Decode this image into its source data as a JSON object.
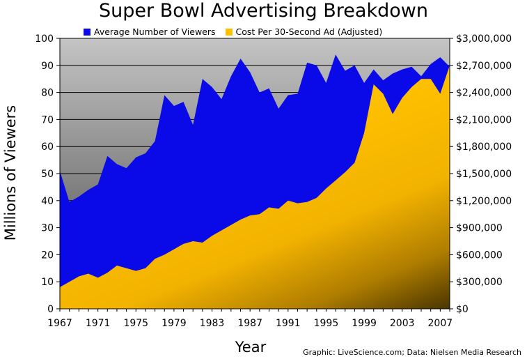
{
  "chart_data": {
    "type": "area",
    "title": "Super Bowl Advertising Breakdown",
    "xlabel": "Year",
    "ylabel": "Millions of Viewers",
    "credit": "Graphic: LiveScience.com; Data: Nielsen Media Research",
    "legend_placement": "top",
    "grid": true,
    "x": [
      1967,
      1968,
      1969,
      1970,
      1971,
      1972,
      1973,
      1974,
      1975,
      1976,
      1977,
      1978,
      1979,
      1980,
      1981,
      1982,
      1983,
      1984,
      1985,
      1986,
      1987,
      1988,
      1989,
      1990,
      1991,
      1992,
      1993,
      1994,
      1995,
      1996,
      1997,
      1998,
      1999,
      2000,
      2001,
      2002,
      2003,
      2004,
      2005,
      2006,
      2007,
      2008
    ],
    "xlim": [
      1967,
      2008
    ],
    "x_ticks": [
      "1967",
      "1971",
      "1975",
      "1979",
      "1983",
      "1987",
      "1991",
      "1995",
      "1999",
      "2003",
      "2007"
    ],
    "y_left": {
      "lim": [
        0,
        100
      ],
      "ticks": [
        "0",
        "10",
        "20",
        "30",
        "40",
        "50",
        "60",
        "70",
        "80",
        "90",
        "100"
      ]
    },
    "y_right": {
      "lim": [
        0,
        3000000
      ],
      "ticks": [
        "$0",
        "$300,000",
        "$600,000",
        "$900,000",
        "$1,200,000",
        "$1,500,000",
        "$1,800,000",
        "$2,100,000",
        "$2,400,000",
        "$2,700,000",
        "$3,000,000"
      ]
    },
    "series": [
      {
        "name": "Average Number of Viewers",
        "axis": "left",
        "color": "#0a0ae8",
        "values": [
          51,
          39.5,
          41.5,
          44,
          46,
          56.5,
          53.5,
          52,
          56,
          57.5,
          62,
          79,
          75,
          76.5,
          68,
          85,
          82,
          77.5,
          86,
          92.5,
          87.5,
          80,
          81.5,
          74,
          79,
          79.5,
          91,
          90,
          83.5,
          94,
          88,
          90,
          83.5,
          88.5,
          84.5,
          87,
          88.5,
          89.5,
          86,
          90.5,
          93,
          89.5
        ]
      },
      {
        "name": "Cost Per 30-Second Ad (Adjusted)",
        "axis": "right",
        "color": "#ffc000",
        "values": [
          240000,
          300000,
          360000,
          390000,
          345000,
          400000,
          480000,
          450000,
          420000,
          450000,
          555000,
          600000,
          660000,
          720000,
          750000,
          735000,
          810000,
          870000,
          930000,
          990000,
          1035000,
          1050000,
          1125000,
          1110000,
          1200000,
          1170000,
          1185000,
          1230000,
          1335000,
          1425000,
          1515000,
          1620000,
          1950000,
          2490000,
          2385000,
          2160000,
          2340000,
          2460000,
          2550000,
          2550000,
          2385000,
          2700000
        ]
      }
    ]
  }
}
